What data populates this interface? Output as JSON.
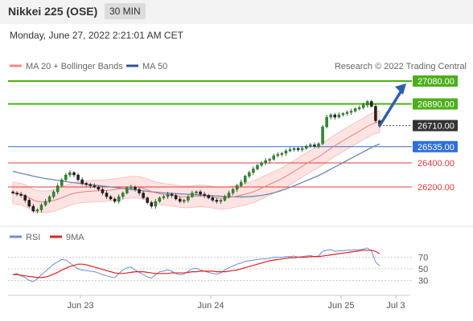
{
  "header": {
    "title": "Nikkei 225 (OSE)",
    "timeframe": "30 MIN"
  },
  "date": "Monday, June 27, 2022 2:21:01 AM CET",
  "legend": {
    "bollinger": {
      "label": "MA 20 + Bollinger Bands",
      "color": "#f28b82"
    },
    "ma50": {
      "label": "MA 50",
      "color": "#2f5597"
    },
    "credit": "Research © 2022 Trading Central"
  },
  "rsi_legend": {
    "rsi": {
      "label": "RSI",
      "color": "#6a8fd8"
    },
    "ma9": {
      "label": "9MA",
      "color": "#e02020"
    }
  },
  "chart_data": [
    {
      "type": "candlestick",
      "x_ticks": [
        "Jun 23",
        "Jun 24",
        "Jun 25",
        "Jul 3"
      ],
      "ylim": [
        25940,
        27140
      ],
      "price_levels": [
        {
          "value": 27080.0,
          "label": "27080.00",
          "kind": "resistance",
          "color": "#4caf1a"
        },
        {
          "value": 26890.0,
          "label": "26890.00",
          "kind": "resistance",
          "color": "#4caf1a"
        },
        {
          "value": 26710.0,
          "label": "26710.00",
          "kind": "last",
          "color": "#333333"
        },
        {
          "value": 26535.0,
          "label": "26535.00",
          "kind": "pivot",
          "color": "#2f6fd6"
        },
        {
          "value": 26400.0,
          "label": "26400.00",
          "kind": "support",
          "color": "#e53935"
        },
        {
          "value": 26200.0,
          "label": "26200.00",
          "kind": "support",
          "color": "#e53935"
        }
      ],
      "closes": [
        26150,
        26140,
        26130,
        26090,
        26040,
        26000,
        26010,
        26050,
        26080,
        26120,
        26160,
        26210,
        26260,
        26300,
        26320,
        26300,
        26260,
        26230,
        26220,
        26210,
        26200,
        26180,
        26150,
        26120,
        26100,
        26080,
        26120,
        26150,
        26190,
        26200,
        26180,
        26150,
        26110,
        26070,
        26040,
        26080,
        26110,
        26120,
        26140,
        26130,
        26100,
        26080,
        26090,
        26120,
        26150,
        26160,
        26140,
        26130,
        26110,
        26090,
        26080,
        26090,
        26120,
        26150,
        26180,
        26210,
        26240,
        26290,
        26320,
        26350,
        26380,
        26400,
        26420,
        26430,
        26460,
        26470,
        26480,
        26500,
        26510,
        26520,
        26510,
        26520,
        26540,
        26550,
        26540,
        26560,
        26700,
        26780,
        26800,
        26780,
        26800,
        26810,
        26820,
        26830,
        26850,
        26860,
        26880,
        26910,
        26870,
        26750,
        26710
      ],
      "ma50": [
        26330,
        26322,
        26314,
        26306,
        26298,
        26290,
        26283,
        26276,
        26270,
        26265,
        26260,
        26255,
        26250,
        26245,
        26240,
        26236,
        26232,
        26228,
        26224,
        26220,
        26216,
        26212,
        26208,
        26204,
        26200,
        26196,
        26192,
        26188,
        26184,
        26180,
        26176,
        26172,
        26168,
        26164,
        26160,
        26157,
        26154,
        26151,
        26149,
        26147,
        26145,
        26143,
        26141,
        26139,
        26137,
        26135,
        26133,
        26131,
        26129,
        26127,
        26125,
        26123,
        26121,
        26120,
        26119,
        26118,
        26118,
        26118,
        26120,
        26122,
        26126,
        26130,
        26136,
        26143,
        26152,
        26161,
        26172,
        26184,
        26197,
        26210,
        26224,
        26238,
        26252,
        26266,
        26280,
        26295,
        26312,
        26330,
        26348,
        26366,
        26384,
        26402,
        26420,
        26438,
        26456,
        26474,
        26492,
        26510,
        26528,
        26544,
        26558
      ],
      "rsi": {
        "levels": [
          70,
          50,
          30
        ],
        "rsi": [
          40,
          42,
          38,
          35,
          30,
          28,
          33,
          40,
          46,
          52,
          58,
          62,
          66,
          65,
          60,
          55,
          50,
          48,
          47,
          46,
          45,
          43,
          40,
          38,
          36,
          35,
          42,
          48,
          52,
          53,
          48,
          44,
          40,
          36,
          34,
          40,
          45,
          46,
          48,
          46,
          42,
          40,
          41,
          46,
          50,
          51,
          48,
          46,
          44,
          42,
          41,
          43,
          48,
          52,
          55,
          58,
          60,
          63,
          64,
          65,
          66,
          67,
          67,
          68,
          70,
          70,
          70,
          71,
          71,
          72,
          70,
          71,
          72,
          73,
          71,
          72,
          80,
          82,
          83,
          80,
          81,
          81,
          82,
          82,
          83,
          83,
          84,
          86,
          80,
          62,
          55
        ],
        "ma9": [
          40,
          40,
          39,
          38,
          37,
          36,
          35,
          35,
          36,
          38,
          41,
          44,
          48,
          51,
          54,
          56,
          58,
          58,
          57,
          55,
          53,
          51,
          49,
          47,
          45,
          43,
          42,
          42,
          43,
          44,
          45,
          45,
          45,
          44,
          43,
          42,
          42,
          42,
          42,
          43,
          43,
          43,
          43,
          44,
          45,
          45,
          46,
          46,
          46,
          46,
          45,
          45,
          45,
          46,
          47,
          48,
          50,
          52,
          54,
          56,
          58,
          60,
          62,
          64,
          65,
          66,
          67,
          68,
          69,
          69,
          70,
          70,
          70,
          71,
          71,
          71,
          72,
          73,
          74,
          75,
          76,
          77,
          78,
          79,
          80,
          81,
          82,
          82,
          82,
          80,
          76
        ]
      }
    }
  ]
}
